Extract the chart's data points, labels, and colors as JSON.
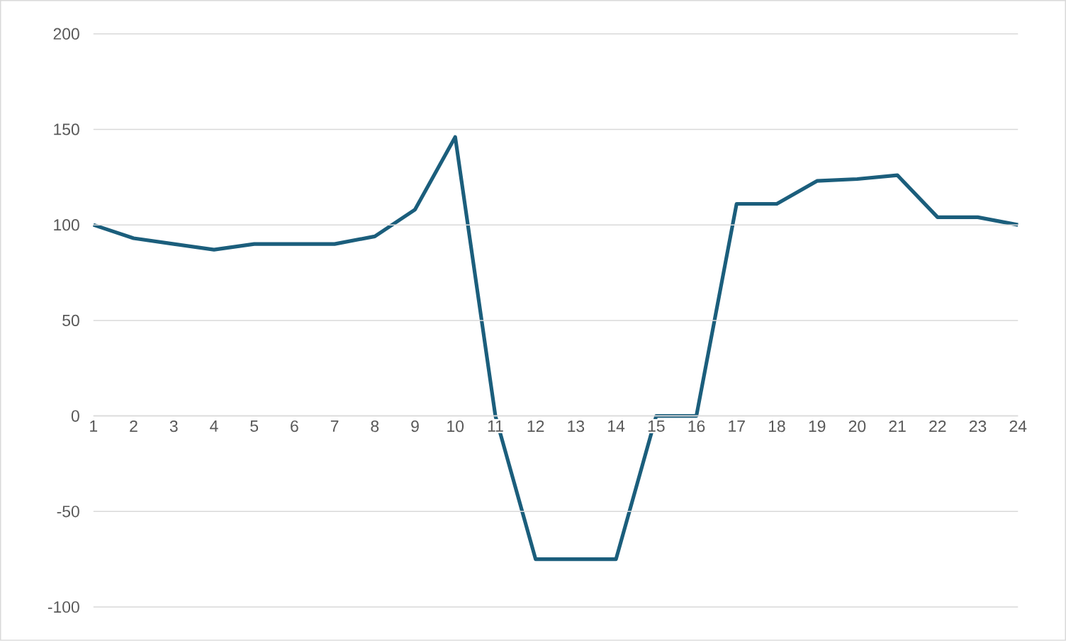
{
  "chart_data": {
    "type": "line",
    "categories": [
      "1",
      "2",
      "3",
      "4",
      "5",
      "6",
      "7",
      "8",
      "9",
      "10",
      "11",
      "12",
      "13",
      "14",
      "15",
      "16",
      "17",
      "18",
      "19",
      "20",
      "21",
      "22",
      "23",
      "24"
    ],
    "series": [
      {
        "color": "#1b5e7c",
        "values": [
          100,
          93,
          90,
          87,
          90,
          90,
          90,
          94,
          108,
          146,
          0,
          -75,
          -75,
          -75,
          0,
          0,
          111,
          111,
          123,
          124,
          126,
          104,
          104,
          100
        ]
      }
    ],
    "ylim": [
      -100,
      200
    ],
    "yticks": [
      -100,
      -50,
      0,
      50,
      100,
      150,
      200
    ],
    "grid": "y",
    "marker": "none",
    "line_style": "solid",
    "legend": false
  }
}
